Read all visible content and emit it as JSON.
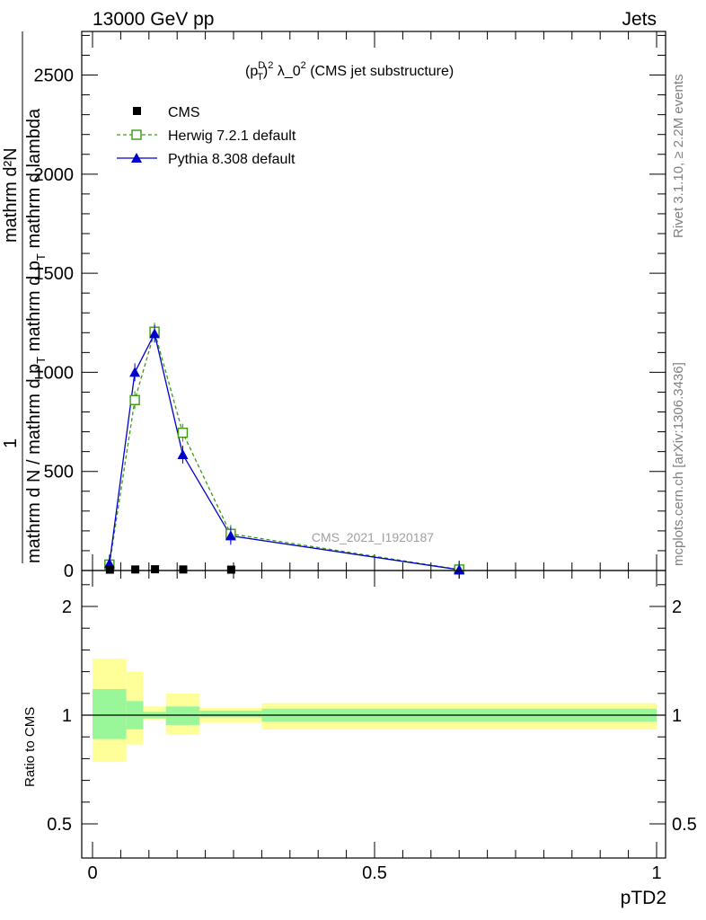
{
  "header": {
    "energy": "13000 GeV pp",
    "process": "Jets"
  },
  "side": {
    "rivet": "Rivet 3.1.10, ≥ 2.2M events",
    "source": "mcplots.cern.ch [arXiv:1306.3436]"
  },
  "watermark": "CMS_2021_I1920187",
  "colors": {
    "cms": "#000000",
    "herwig": "#3a9a10",
    "pythia": "#0000cc",
    "band_inner": "#99f799",
    "band_outer": "#ffff99"
  },
  "chart_data": [
    {
      "type": "line",
      "title_parts": {
        "p": "(p",
        "sup1": "D",
        "sub1": "T",
        "close": ")",
        "sup2": "2",
        "rest": " λ_0",
        "sup3": "2",
        "tail": " (CMS jet substructure)"
      },
      "ylabel": {
        "numerator": "mathrm d²N",
        "one": "1",
        "den_a": "mathrm d N / mathrm d p",
        "den_a_sub": "T",
        "den_b": " mathrm d p",
        "den_b_sub": "T",
        "den_c": " mathrm d lambda"
      },
      "ylim": [
        0,
        2720
      ],
      "y_ticks": [
        0,
        500,
        1000,
        1500,
        2000,
        2500
      ],
      "y_tick_labels": [
        "0",
        "500",
        "1000",
        "1500",
        "2000",
        "2500"
      ],
      "legend_position": "top-left",
      "series": [
        {
          "name": "CMS",
          "x": [
            0.03,
            0.075,
            0.11,
            0.16,
            0.245
          ],
          "y": [
            2,
            3,
            4,
            3,
            2
          ]
        },
        {
          "name": "Herwig 7.2.1 default",
          "x": [
            0.03,
            0.075,
            0.11,
            0.16,
            0.245,
            0.65
          ],
          "y": [
            30,
            860,
            1205,
            695,
            185,
            5
          ]
        },
        {
          "name": "Pythia 8.308 default",
          "x": [
            0.03,
            0.075,
            0.11,
            0.16,
            0.245,
            0.65
          ],
          "y": [
            35,
            1000,
            1195,
            585,
            175,
            4
          ]
        }
      ]
    },
    {
      "type": "area",
      "ylabel": "Ratio to CMS",
      "xlabel": "pTD2",
      "xlim": [
        0,
        1
      ],
      "ylim": [
        0.35,
        2.3
      ],
      "x_ticks": [
        0,
        0.5,
        1
      ],
      "x_tick_labels": [
        "0",
        "0.5",
        "1"
      ],
      "y_ticks": [
        0.5,
        1,
        2
      ],
      "y_tick_labels": [
        "0.5",
        "1",
        "2"
      ],
      "bins": [
        {
          "lo": 0.0,
          "hi": 0.06,
          "inner": [
            0.78,
            1.24
          ],
          "outer": [
            0.57,
            1.52
          ]
        },
        {
          "lo": 0.06,
          "hi": 0.09,
          "inner": [
            0.87,
            1.13
          ],
          "outer": [
            0.73,
            1.4
          ]
        },
        {
          "lo": 0.09,
          "hi": 0.13,
          "inner": [
            0.97,
            1.03
          ],
          "outer": [
            0.96,
            1.08
          ]
        },
        {
          "lo": 0.13,
          "hi": 0.19,
          "inner": [
            0.91,
            1.08
          ],
          "outer": [
            0.82,
            1.2
          ]
        },
        {
          "lo": 0.19,
          "hi": 0.3,
          "inner": [
            0.98,
            1.04
          ],
          "outer": [
            0.93,
            1.07
          ]
        },
        {
          "lo": 0.3,
          "hi": 1.0,
          "inner": [
            0.94,
            1.06
          ],
          "outer": [
            0.87,
            1.11
          ]
        }
      ]
    }
  ]
}
